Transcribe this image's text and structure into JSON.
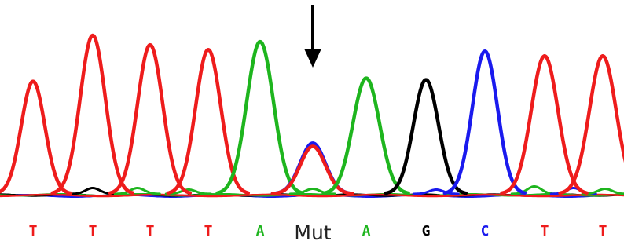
{
  "colors": {
    "A": "#1eb51e",
    "T": "#ee1c1c",
    "G": "#000000",
    "C": "#1a1aee",
    "Mut": "#222222"
  },
  "arrow": {
    "icon": "down-arrow-icon",
    "color": "#000000"
  },
  "chart_data": {
    "type": "line",
    "title": "",
    "xlabel": "",
    "ylabel": "",
    "x_labels": [
      "T",
      "T",
      "T",
      "T",
      "A",
      "Mut",
      "A",
      "G",
      "C",
      "T",
      "T"
    ],
    "ylim": [
      0,
      1
    ],
    "peaks": [
      {
        "label": "T",
        "base": "T",
        "height": 0.71
      },
      {
        "label": "T",
        "base": "T",
        "height": 1.0
      },
      {
        "label": "T",
        "base": "T",
        "height": 0.94
      },
      {
        "label": "T",
        "base": "T",
        "height": 0.91
      },
      {
        "label": "A",
        "base": "A",
        "height": 0.96
      },
      {
        "label": "Mut",
        "base": "T",
        "height": 0.3,
        "overlap": {
          "base": "C",
          "height": 0.32
        }
      },
      {
        "label": "A",
        "base": "A",
        "height": 0.73
      },
      {
        "label": "G",
        "base": "G",
        "height": 0.72
      },
      {
        "label": "C",
        "base": "C",
        "height": 0.9
      },
      {
        "label": "T",
        "base": "T",
        "height": 0.87
      },
      {
        "label": "T",
        "base": "T",
        "height": 0.87
      }
    ]
  }
}
